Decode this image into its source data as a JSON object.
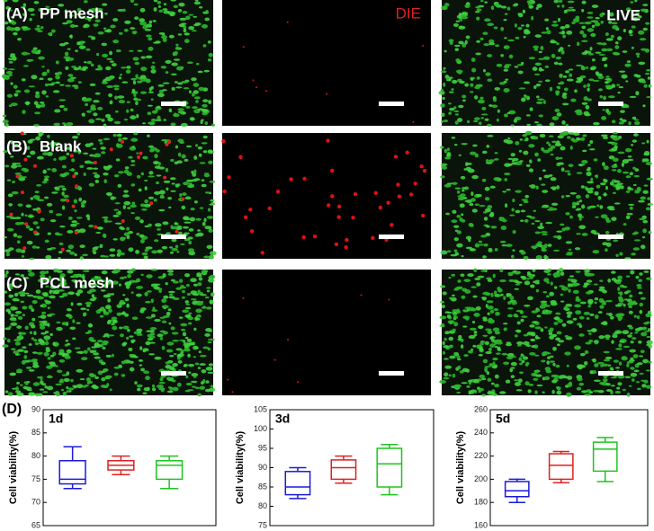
{
  "figure": {
    "rows": [
      {
        "label": "(A)",
        "name": "PP mesh"
      },
      {
        "label": "(B)",
        "name": "Blank"
      },
      {
        "label": "(C)",
        "name": "PCL mesh"
      }
    ],
    "die_label": "DIE",
    "live_label": "LIVE",
    "chart_panel_label": "(D)"
  },
  "chart_data": [
    {
      "type": "box",
      "title": "1d",
      "y_label": "Cell viability(%)",
      "ylim": [
        65,
        90
      ],
      "yticks": [
        65,
        70,
        75,
        80,
        85,
        90
      ],
      "series": [
        {
          "color": "#1a1adb",
          "stats": [
            73,
            74,
            75,
            79,
            82
          ]
        },
        {
          "color": "#e02020",
          "stats": [
            76,
            77,
            78,
            79,
            80
          ]
        },
        {
          "color": "#1fc41f",
          "stats": [
            73,
            75,
            78,
            79,
            80
          ]
        }
      ]
    },
    {
      "type": "box",
      "title": "3d",
      "y_label": "Cell viability(%)",
      "ylim": [
        75,
        105
      ],
      "yticks": [
        75,
        80,
        85,
        90,
        95,
        100,
        105
      ],
      "series": [
        {
          "color": "#1a1adb",
          "stats": [
            82,
            83,
            85,
            89,
            90
          ]
        },
        {
          "color": "#e02020",
          "stats": [
            86,
            87,
            90,
            92,
            93
          ]
        },
        {
          "color": "#1fc41f",
          "stats": [
            83,
            85,
            91,
            95,
            96
          ]
        }
      ]
    },
    {
      "type": "box",
      "title": "5d",
      "y_label": "Cell viability(%)",
      "ylim": [
        160,
        260
      ],
      "yticks": [
        160,
        180,
        200,
        220,
        240,
        260
      ],
      "series": [
        {
          "color": "#1a1adb",
          "stats": [
            180,
            185,
            190,
            198,
            200
          ]
        },
        {
          "color": "#e02020",
          "stats": [
            197,
            200,
            212,
            222,
            224
          ]
        },
        {
          "color": "#1fc41f",
          "stats": [
            198,
            207,
            226,
            232,
            236
          ]
        }
      ]
    }
  ]
}
